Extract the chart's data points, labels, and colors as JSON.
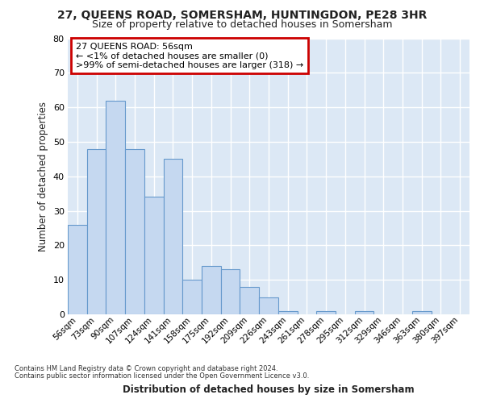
{
  "title_line1": "27, QUEENS ROAD, SOMERSHAM, HUNTINGDON, PE28 3HR",
  "title_line2": "Size of property relative to detached houses in Somersham",
  "xlabel": "Distribution of detached houses by size in Somersham",
  "ylabel": "Number of detached properties",
  "bar_labels": [
    "56sqm",
    "73sqm",
    "90sqm",
    "107sqm",
    "124sqm",
    "141sqm",
    "158sqm",
    "175sqm",
    "192sqm",
    "209sqm",
    "226sqm",
    "243sqm",
    "261sqm",
    "278sqm",
    "295sqm",
    "312sqm",
    "329sqm",
    "346sqm",
    "363sqm",
    "380sqm",
    "397sqm"
  ],
  "bar_values": [
    26,
    48,
    62,
    48,
    34,
    45,
    10,
    14,
    13,
    8,
    5,
    1,
    0,
    1,
    0,
    1,
    0,
    0,
    1,
    0,
    0
  ],
  "bar_color": "#c5d8f0",
  "bar_edge_color": "#6699cc",
  "background_color": "#dce8f5",
  "grid_color": "#ffffff",
  "fig_background": "#ffffff",
  "ylim": [
    0,
    80
  ],
  "yticks": [
    0,
    10,
    20,
    30,
    40,
    50,
    60,
    70,
    80
  ],
  "annotation_title": "27 QUEENS ROAD: 56sqm",
  "annotation_line2": "← <1% of detached houses are smaller (0)",
  "annotation_line3": ">99% of semi-detached houses are larger (318) →",
  "annotation_box_color": "#ffffff",
  "annotation_edge_color": "#cc0000",
  "footer_line1": "Contains HM Land Registry data © Crown copyright and database right 2024.",
  "footer_line2": "Contains public sector information licensed under the Open Government Licence v3.0."
}
